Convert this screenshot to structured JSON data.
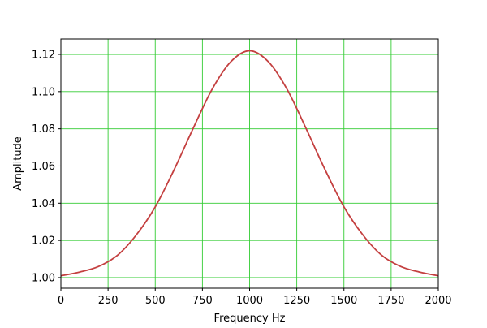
{
  "chart_data": {
    "type": "line",
    "title": "",
    "xlabel": "Frequency Hz",
    "ylabel": "Amplitude",
    "xlim": [
      0,
      2000
    ],
    "ylim": [
      0.9943,
      1.1283
    ],
    "grid": true,
    "colors": {
      "line": "#c44040",
      "grid": "#33cc33",
      "axes": "#000000"
    },
    "xticks": [
      0,
      250,
      500,
      750,
      1000,
      1250,
      1500,
      1750,
      2000
    ],
    "xtick_labels": [
      "0",
      "250",
      "500",
      "750",
      "1000",
      "1250",
      "1500",
      "1750",
      "2000"
    ],
    "yticks": [
      1.0,
      1.02,
      1.04,
      1.06,
      1.08,
      1.1,
      1.12
    ],
    "ytick_labels": [
      "1.00",
      "1.02",
      "1.04",
      "1.06",
      "1.08",
      "1.10",
      "1.12"
    ],
    "series": [
      {
        "x": [
          0,
          100,
          200,
          300,
          400,
          500,
          600,
          700,
          800,
          900,
          1000,
          1100,
          1200,
          1300,
          1400,
          1500,
          1600,
          1700,
          1800,
          1900,
          2000
        ],
        "y": [
          1.001,
          1.003,
          1.006,
          1.012,
          1.023,
          1.038,
          1.058,
          1.08,
          1.101,
          1.116,
          1.122,
          1.116,
          1.101,
          1.08,
          1.058,
          1.038,
          1.023,
          1.012,
          1.006,
          1.003,
          1.001
        ]
      }
    ]
  }
}
